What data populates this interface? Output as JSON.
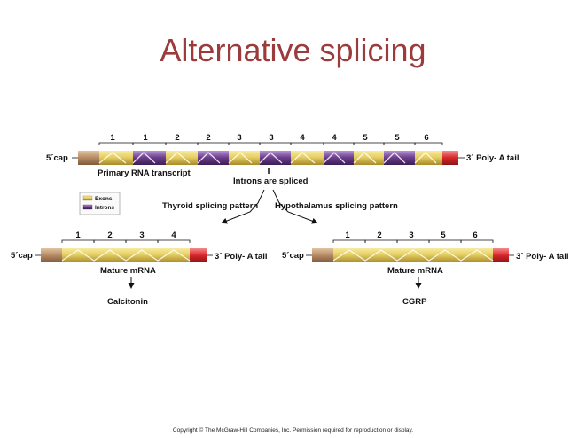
{
  "title": "Alternative splicing",
  "primary": {
    "cap": "5´cap",
    "tail": "3´ Poly- A tail",
    "label": "Primary RNA  transcript",
    "exon_numbers": [
      "1",
      "1",
      "2",
      "2",
      "3",
      "3",
      "4",
      "4",
      "5",
      "5",
      "6"
    ],
    "annotation": "Introns are spliced"
  },
  "legend": {
    "exons": "Exons",
    "introns": "Introns"
  },
  "thyroid": {
    "pattern": "Thyroid splicing pattern",
    "cap": "5´cap",
    "tail": "3´ Poly- A tail",
    "exon_numbers": [
      "1",
      "2",
      "3",
      "4"
    ],
    "label": "Mature mRNA",
    "product": "Calcitonin"
  },
  "hypothalamus": {
    "pattern": "Hypothalamus splicing pattern",
    "cap": "5´cap",
    "tail": "3´ Poly- A tail",
    "exon_numbers": [
      "1",
      "2",
      "3",
      "5",
      "6"
    ],
    "label": "Mature mRNA",
    "product": "CGRP"
  },
  "colors": {
    "exon": "#e6cf63",
    "intron": "#6a3b8c",
    "cap": "#b68a63",
    "tail": "#d8262b",
    "title": "#9b3b3b"
  },
  "copyright": "Copyright © The McGraw-Hill Companies, Inc. Permission required for reproduction or display."
}
